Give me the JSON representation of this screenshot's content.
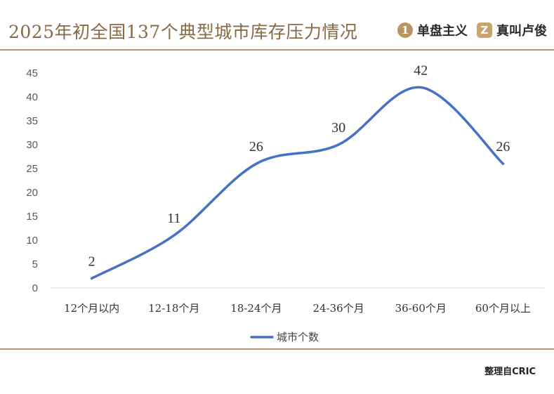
{
  "header": {
    "title": "2025年初全国137个典型城市库存压力情况",
    "brands": [
      {
        "mark": "1",
        "label": "单盘主义",
        "icon": "number-one-circle-icon"
      },
      {
        "mark": "Z",
        "label": "真叫卢俊",
        "icon": "z-square-icon"
      }
    ]
  },
  "footer": {
    "source": "整理自CRIC"
  },
  "colors": {
    "title": "#8a6a45",
    "rule": "#b89a72",
    "line": "#4472c4",
    "highlight_label": "#e0201a",
    "grid": "#d9d9d9"
  },
  "chart_data": {
    "type": "line",
    "title": "2025年初全国137个典型城市库存压力情况",
    "categories": [
      "12个月以内",
      "12-18个月",
      "18-24个月",
      "24-36个月",
      "36-60个月",
      "60个月以上"
    ],
    "series": [
      {
        "name": "城市个数",
        "values": [
          2,
          11,
          26,
          30,
          42,
          26
        ]
      }
    ],
    "data_labels": [
      "2",
      "11",
      "26",
      "30",
      "42",
      "26"
    ],
    "highlight_index": 4,
    "ylim": [
      0,
      45
    ],
    "yticks": [
      0,
      5,
      10,
      15,
      20,
      25,
      30,
      35,
      40,
      45
    ],
    "smooth": true,
    "gridlines": false,
    "legend": "bottom",
    "xlabel": "",
    "ylabel": ""
  }
}
